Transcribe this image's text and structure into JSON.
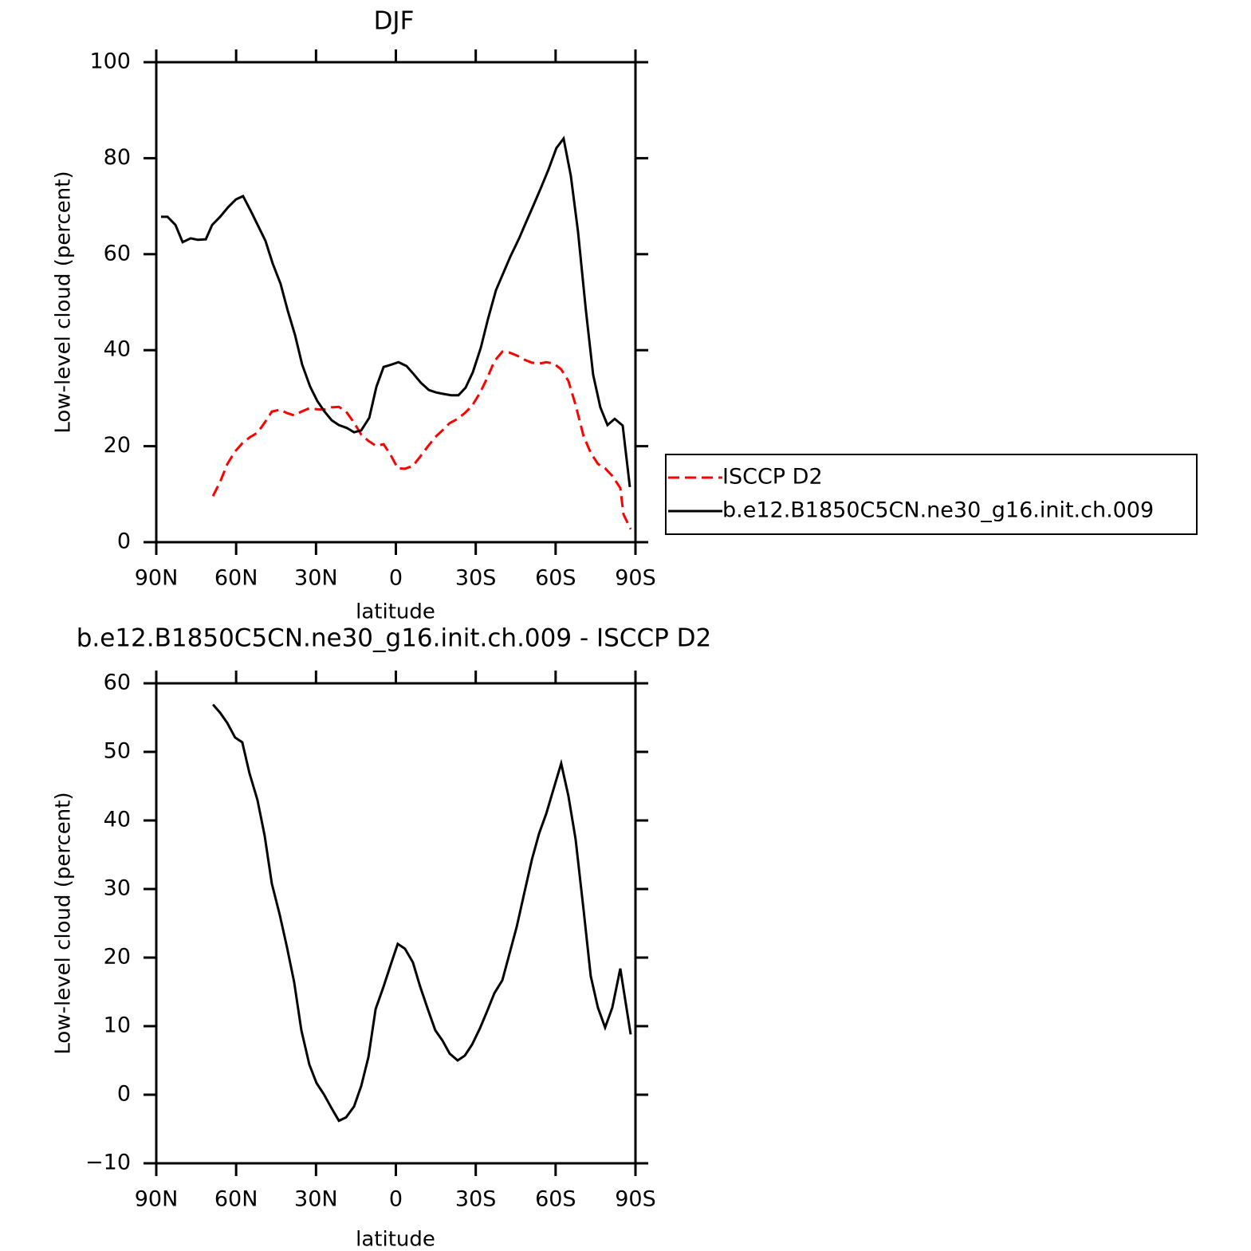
{
  "chart_data": [
    {
      "type": "line",
      "title": "DJF",
      "xlabel": "latitude",
      "ylabel": "Low-level cloud (percent)",
      "xlim": [
        90,
        -90
      ],
      "xticks": [
        {
          "value": 90,
          "label": "90N"
        },
        {
          "value": 60,
          "label": "60N"
        },
        {
          "value": 30,
          "label": "30N"
        },
        0,
        {
          "value": -30,
          "label": "30S"
        },
        {
          "value": -60,
          "label": "60S"
        },
        {
          "value": -90,
          "label": "90S"
        }
      ],
      "ylim": [
        0,
        100
      ],
      "yticks": [
        0,
        20,
        40,
        60,
        80,
        100
      ],
      "legend": "right",
      "series": [
        {
          "name": "ISCCP D2",
          "color": "#ff0000",
          "style": "dashed",
          "x": [
            68.7,
            66.0,
            63.3,
            60.4,
            57.7,
            55.0,
            52.0,
            49.3,
            46.6,
            43.6,
            40.9,
            38.2,
            35.5,
            32.5,
            29.8,
            27.1,
            24.1,
            21.4,
            18.7,
            15.7,
            13.0,
            10.3,
            7.6,
            4.6,
            1.9,
            -0.7,
            -3.4,
            -6.4,
            -9.1,
            -11.8,
            -14.8,
            -17.5,
            -20.2,
            -23.2,
            -25.9,
            -28.6,
            -31.6,
            -34.3,
            -37.0,
            -40.0,
            -42.7,
            -45.4,
            -48.4,
            -51.1,
            -53.8,
            -56.5,
            -59.4,
            -62.1,
            -64.8,
            -67.5,
            -70.5,
            -73.2,
            -75.9,
            -78.6,
            -81.3,
            -84.3,
            -85.5,
            -88.2
          ],
          "values": [
            9.6,
            12.6,
            16.3,
            18.9,
            20.6,
            21.8,
            22.8,
            24.9,
            27.2,
            27.6,
            26.9,
            26.4,
            27.2,
            27.9,
            27.7,
            27.6,
            28.1,
            28.2,
            27.2,
            24.9,
            22.4,
            21.1,
            20.1,
            20.4,
            18.1,
            15.4,
            15.3,
            15.9,
            17.8,
            19.8,
            21.9,
            23.3,
            24.8,
            25.7,
            26.9,
            28.4,
            31.1,
            34.2,
            37.7,
            39.7,
            39.5,
            38.9,
            38.0,
            37.4,
            37.2,
            37.5,
            37.2,
            36.0,
            33.6,
            28.6,
            22.1,
            18.6,
            16.3,
            15.4,
            13.8,
            11.3,
            5.8,
            2.7
          ]
        },
        {
          "name": "b.e12.B1850C5CN.ne30_g16.init.ch.009",
          "color": "#000000",
          "style": "solid",
          "x": [
            88.2,
            85.8,
            82.8,
            80.1,
            77.1,
            74.4,
            71.4,
            69.0,
            66.0,
            63.0,
            60.1,
            57.4,
            54.4,
            49.0,
            46.3,
            43.3,
            40.6,
            37.9,
            35.2,
            32.2,
            29.5,
            26.8,
            24.1,
            21.4,
            18.4,
            15.7,
            13.0,
            10.0,
            7.3,
            4.6,
            1.7,
            -1.0,
            -4.0,
            -6.7,
            -9.4,
            -12.4,
            -15.1,
            -17.8,
            -20.8,
            -23.5,
            -26.2,
            -28.9,
            -31.9,
            -34.6,
            -37.6,
            -43.0,
            -46.3,
            -48.7,
            -52.0,
            -54.7,
            -57.3,
            -60.3,
            -63.0,
            -65.7,
            -68.4,
            -71.4,
            -74.1,
            -76.8,
            -79.5,
            -82.2,
            -85.2,
            -87.9
          ],
          "values": [
            67.8,
            67.8,
            66.1,
            62.5,
            63.3,
            63.0,
            63.1,
            66.1,
            67.8,
            69.8,
            71.4,
            72.1,
            68.9,
            62.8,
            58.1,
            53.8,
            48.2,
            43.2,
            37.0,
            32.4,
            29.4,
            27.2,
            25.4,
            24.4,
            23.8,
            22.9,
            23.3,
            25.9,
            32.4,
            36.5,
            37.0,
            37.5,
            36.7,
            35.0,
            33.2,
            31.7,
            31.2,
            30.9,
            30.6,
            30.6,
            32.2,
            35.4,
            40.5,
            46.5,
            52.5,
            59.5,
            63.3,
            66.4,
            70.6,
            74.1,
            77.6,
            82.1,
            84.1,
            76.4,
            64.8,
            48.2,
            34.9,
            28.1,
            24.4,
            25.7,
            24.3,
            11.5
          ]
        }
      ]
    },
    {
      "type": "line",
      "title": "b.e12.B1850C5CN.ne30_g16.init.ch.009 - ISCCP D2",
      "xlabel": "latitude",
      "ylabel": "Low-level cloud (percent)",
      "xlim": [
        90,
        -90
      ],
      "xticks": [
        {
          "value": 90,
          "label": "90N"
        },
        {
          "value": 60,
          "label": "60N"
        },
        {
          "value": 30,
          "label": "30N"
        },
        0,
        {
          "value": -30,
          "label": "30S"
        },
        {
          "value": -60,
          "label": "60S"
        },
        {
          "value": -90,
          "label": "90S"
        }
      ],
      "ylim": [
        -10,
        60
      ],
      "yticks": [
        {
          "value": -10,
          "label": "−10"
        },
        0,
        10,
        20,
        30,
        40,
        50,
        60
      ],
      "series": [
        {
          "color": "#000000",
          "style": "solid",
          "x": [
            68.7,
            66.0,
            63.3,
            60.4,
            57.7,
            55.0,
            52.0,
            49.3,
            46.6,
            43.6,
            40.9,
            38.2,
            35.5,
            32.5,
            29.8,
            27.1,
            24.1,
            21.4,
            18.7,
            15.7,
            13.0,
            10.3,
            7.6,
            4.6,
            1.9,
            -0.7,
            -3.4,
            -6.4,
            -9.1,
            -11.8,
            -14.8,
            -17.5,
            -20.2,
            -23.2,
            -25.9,
            -28.6,
            -31.6,
            -34.3,
            -37.0,
            -40.0,
            -42.7,
            -45.4,
            -48.4,
            -51.1,
            -53.8,
            -56.5,
            -59.4,
            -62.1,
            -64.8,
            -67.5,
            -70.5,
            -73.2,
            -75.9,
            -78.6,
            -81.3,
            -84.3,
            -88.2
          ],
          "values": [
            56.9,
            55.7,
            54.2,
            52.1,
            51.4,
            46.9,
            43.0,
            37.8,
            30.8,
            26.2,
            21.5,
            16.4,
            9.4,
            4.4,
            1.7,
            0.1,
            -2.0,
            -3.8,
            -3.3,
            -1.7,
            1.3,
            5.5,
            12.5,
            15.8,
            19.0,
            22.0,
            21.3,
            19.3,
            15.8,
            12.7,
            9.4,
            7.9,
            6.0,
            5.0,
            5.7,
            7.3,
            9.7,
            12.2,
            14.8,
            16.7,
            20.6,
            24.5,
            29.7,
            34.3,
            38.1,
            41.0,
            44.8,
            48.3,
            43.6,
            37.3,
            27.0,
            17.3,
            12.7,
            9.8,
            12.7,
            18.4,
            8.8
          ]
        }
      ]
    }
  ]
}
